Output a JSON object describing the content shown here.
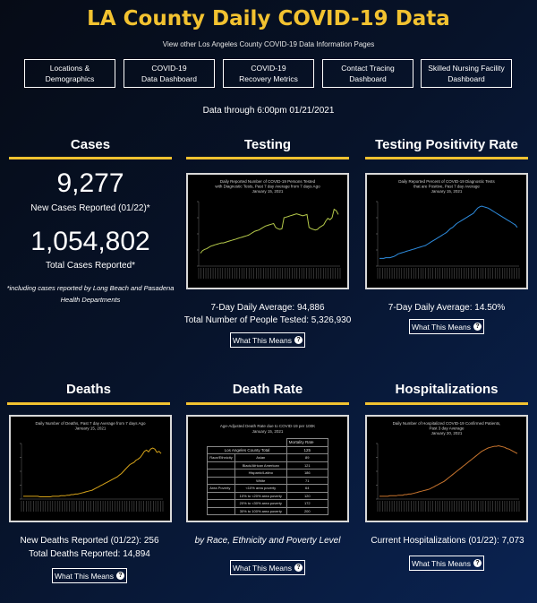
{
  "header": {
    "title": "LA County Daily COVID-19 Data",
    "subtitle": "View other Los Angeles County COVID-19 Data Information Pages",
    "date": "Data through 6:00pm 01/21/2021"
  },
  "nav": [
    {
      "label": "Locations &\nDemographics"
    },
    {
      "label": "COVID-19\nData Dashboard"
    },
    {
      "label": "COVID-19\nRecovery Metrics"
    },
    {
      "label": "Contact Tracing\nDashboard"
    },
    {
      "label": "Skilled Nursing Facility\nDashboard"
    }
  ],
  "cases": {
    "heading": "Cases",
    "new_value": "9,277",
    "new_label": "New Cases Reported (01/22)*",
    "total_value": "1,054,802",
    "total_label": "Total Cases Reported*",
    "footnote": "*including cases reported by Long Beach and Pasadena Health Departments"
  },
  "testing": {
    "heading": "Testing",
    "chart_title": "Daily Reported Number of COVID-19 Persons Tested\nwith Diagnostic Tests, Past 7 day Average from 7 days Ago\nJanuary 15, 2021",
    "line1": "7-Day Daily Average: 94,886",
    "line2": "Total Number of People Tested: 5,326,930",
    "button": "What This Means"
  },
  "positivity": {
    "heading": "Testing Positivity Rate",
    "chart_title": "Daily Reported Percent of COVID-19 Diagnostic Tests\nthat are Positive, Past 7 day Average\nJanuary 15, 2021",
    "line1": "7-Day Daily Average: 14.50%",
    "button": "What This Means"
  },
  "deaths": {
    "heading": "Deaths",
    "chart_title": "Daily Number of Deaths, Past 7 day Average from 7 days Ago\nJanuary 15, 2021",
    "line1": "New Deaths Reported (01/22): 256",
    "line2": "Total Deaths Reported: 14,894",
    "button": "What This Means"
  },
  "death_rate": {
    "heading": "Death Rate",
    "chart_title": "Age-Adjusted Death Rate due to COVID-19 per 100K\nJanuary 15, 2021",
    "col_header": "Mortality Rate",
    "rows": [
      [
        "Los Angeles County Total",
        "",
        "125"
      ],
      [
        "Race/Ethnicity",
        "Asian",
        "89"
      ],
      [
        "",
        "Black/African American",
        "121"
      ],
      [
        "",
        "Hispanic/Latino",
        "186"
      ],
      [
        "",
        "White",
        "71"
      ],
      [
        "Area Poverty",
        "<10% area poverty",
        "64"
      ],
      [
        "",
        "10% to <20% area poverty",
        "120"
      ],
      [
        "",
        "20% to <30% area poverty",
        "172"
      ],
      [
        "",
        "30% to 100% area poverty",
        "200"
      ]
    ],
    "caption": "by Race, Ethnicity and Poverty Level",
    "button": "What This Means"
  },
  "hospitalizations": {
    "heading": "Hospitalizations",
    "chart_title": "Daily Number of Hospitalized COVID-19 Confirmed Patients,\nPast 3 day Average\nJanuary 20, 2021",
    "line1": "Current Hospitalizations (01/22): 7,073",
    "button": "What This Means"
  },
  "chart_data": [
    {
      "type": "line",
      "name": "testing",
      "color": "#b5c94a",
      "values": [
        20,
        24,
        26,
        27,
        29,
        31,
        32,
        33,
        34,
        35,
        36,
        36,
        37,
        38,
        39,
        40,
        41,
        42,
        43,
        44,
        45,
        46,
        47,
        48,
        50,
        52,
        54,
        55,
        56,
        58,
        60,
        62,
        63,
        64,
        65,
        66,
        60,
        58,
        57,
        58,
        75,
        76,
        77,
        78,
        79,
        80,
        81,
        80,
        79,
        78,
        79,
        80,
        60,
        58,
        57,
        56,
        57,
        60,
        62,
        64,
        70,
        74,
        72,
        75,
        88,
        86,
        80
      ]
    },
    {
      "type": "line",
      "name": "positivity",
      "color": "#2e8de0",
      "values": [
        12,
        12,
        12,
        13,
        13,
        13,
        14,
        15,
        17,
        19,
        20,
        21,
        22,
        23,
        24,
        25,
        26,
        27,
        28,
        29,
        30,
        31,
        32,
        34,
        36,
        38,
        40,
        42,
        44,
        46,
        48,
        50,
        52,
        55,
        58,
        60,
        63,
        66,
        68,
        70,
        72,
        74,
        76,
        78,
        80,
        82,
        86,
        90,
        92,
        93,
        92,
        91,
        90,
        88,
        86,
        84,
        82,
        80,
        78,
        76,
        74,
        72,
        70,
        68,
        66,
        64,
        60
      ]
    },
    {
      "type": "line",
      "name": "deaths",
      "color": "#d7a41a",
      "values": [
        5,
        5,
        5,
        5,
        5,
        5,
        5,
        5,
        4,
        4,
        4,
        4,
        4,
        4,
        5,
        5,
        5,
        5,
        6,
        6,
        6,
        7,
        7,
        8,
        8,
        9,
        9,
        10,
        11,
        12,
        13,
        14,
        15,
        16,
        18,
        20,
        22,
        24,
        26,
        28,
        30,
        32,
        34,
        36,
        38,
        40,
        43,
        46,
        50,
        54,
        58,
        62,
        64,
        66,
        70,
        72,
        75,
        80,
        86,
        88,
        85,
        90,
        92,
        90,
        84,
        86,
        82
      ]
    },
    {
      "type": "line",
      "name": "hospitalizations",
      "color": "#c9752e",
      "values": [
        5,
        5,
        5,
        5,
        5,
        6,
        6,
        6,
        6,
        7,
        7,
        7,
        8,
        8,
        9,
        9,
        10,
        11,
        12,
        13,
        14,
        15,
        16,
        17,
        18,
        20,
        22,
        24,
        26,
        28,
        30,
        32,
        35,
        38,
        41,
        44,
        47,
        50,
        53,
        56,
        59,
        62,
        65,
        68,
        71,
        74,
        77,
        80,
        83,
        86,
        88,
        90,
        92,
        93,
        94,
        95,
        95,
        96,
        95,
        94,
        93,
        91,
        90,
        88,
        86,
        84,
        82
      ]
    }
  ]
}
